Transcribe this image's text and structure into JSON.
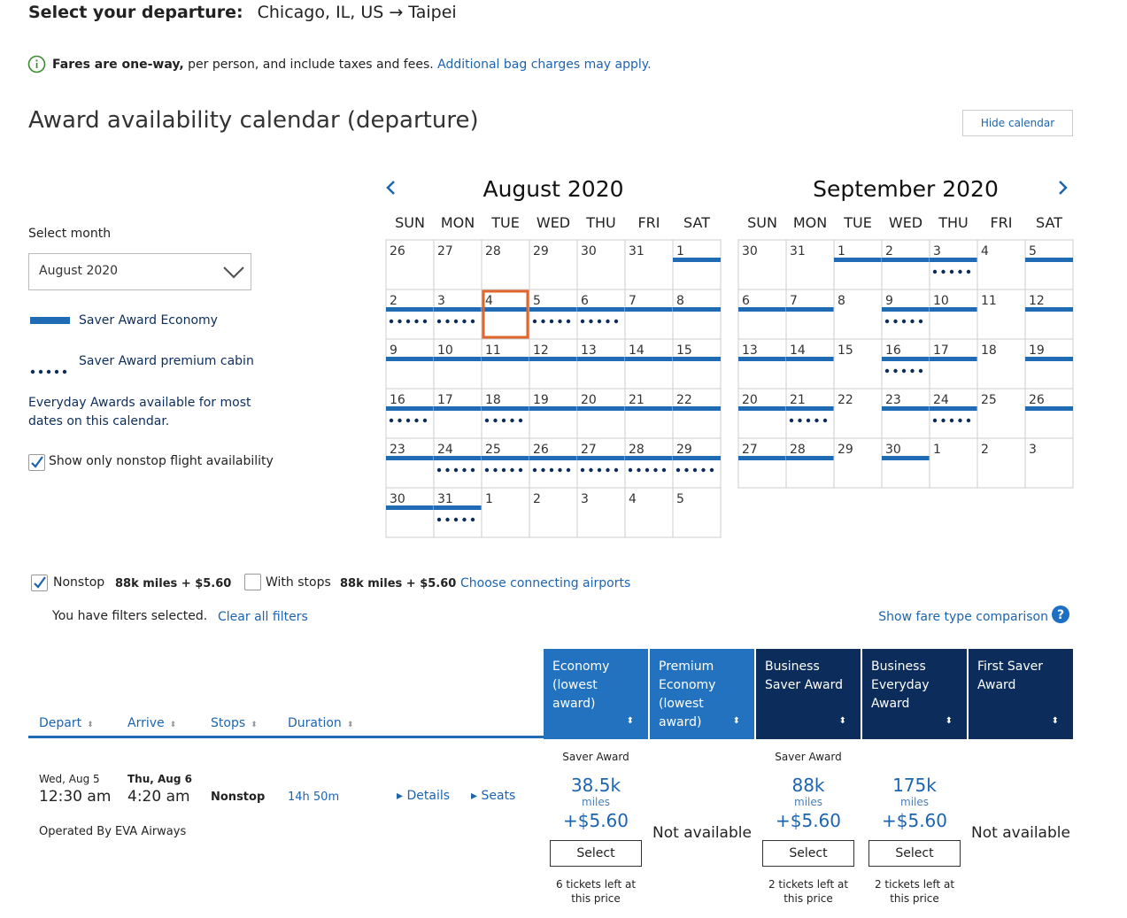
{
  "header": {
    "title": "Select your departure:",
    "route": "Chicago, IL, US → Taipei"
  },
  "notice": {
    "bold": "Fares are one-way,",
    "text": " per person, and include taxes and fees.",
    "link": "Additional bag charges may apply."
  },
  "calendar": {
    "title": "Award availability calendar (departure)",
    "hide_button": "Hide calendar",
    "select_label": "Select month",
    "select_value": "August 2020",
    "legend": [
      "Saver Award Economy",
      "Saver Award premium cabin"
    ],
    "everyday_note": "Everyday Awards available for most dates on this calendar.",
    "nonstop_checkbox": {
      "label": "Show only nonstop flight availability",
      "checked": true
    },
    "months": [
      {
        "title": "August 2020",
        "weekdays": [
          "SUN",
          "MON",
          "TUE",
          "WED",
          "THU",
          "FRI",
          "SAT"
        ],
        "days": [
          {
            "day": 26,
            "saver": false,
            "premium": false
          },
          {
            "day": 27,
            "saver": false,
            "premium": false
          },
          {
            "day": 28,
            "saver": false,
            "premium": false
          },
          {
            "day": 29,
            "saver": false,
            "premium": false
          },
          {
            "day": 30,
            "saver": false,
            "premium": false
          },
          {
            "day": 31,
            "saver": false,
            "premium": false
          },
          {
            "day": 1,
            "saver": true,
            "premium": false
          },
          {
            "day": 2,
            "saver": true,
            "premium": true
          },
          {
            "day": 3,
            "saver": true,
            "premium": true
          },
          {
            "day": 4,
            "saver": true,
            "premium": false,
            "selected": true
          },
          {
            "day": 5,
            "saver": true,
            "premium": true
          },
          {
            "day": 6,
            "saver": true,
            "premium": true
          },
          {
            "day": 7,
            "saver": true,
            "premium": false
          },
          {
            "day": 8,
            "saver": true,
            "premium": false
          },
          {
            "day": 9,
            "saver": true,
            "premium": false
          },
          {
            "day": 10,
            "saver": true,
            "premium": false
          },
          {
            "day": 11,
            "saver": true,
            "premium": false
          },
          {
            "day": 12,
            "saver": true,
            "premium": false
          },
          {
            "day": 13,
            "saver": true,
            "premium": false
          },
          {
            "day": 14,
            "saver": true,
            "premium": false
          },
          {
            "day": 15,
            "saver": true,
            "premium": false
          },
          {
            "day": 16,
            "saver": true,
            "premium": true
          },
          {
            "day": 17,
            "saver": true,
            "premium": false
          },
          {
            "day": 18,
            "saver": true,
            "premium": true
          },
          {
            "day": 19,
            "saver": true,
            "premium": false
          },
          {
            "day": 20,
            "saver": true,
            "premium": false
          },
          {
            "day": 21,
            "saver": true,
            "premium": false
          },
          {
            "day": 22,
            "saver": true,
            "premium": false
          },
          {
            "day": 23,
            "saver": true,
            "premium": false
          },
          {
            "day": 24,
            "saver": true,
            "premium": true
          },
          {
            "day": 25,
            "saver": true,
            "premium": true
          },
          {
            "day": 26,
            "saver": true,
            "premium": true
          },
          {
            "day": 27,
            "saver": true,
            "premium": true
          },
          {
            "day": 28,
            "saver": true,
            "premium": true
          },
          {
            "day": 29,
            "saver": true,
            "premium": true
          },
          {
            "day": 30,
            "saver": true,
            "premium": false
          },
          {
            "day": 31,
            "saver": true,
            "premium": true
          },
          {
            "day": 1,
            "saver": false,
            "premium": false
          },
          {
            "day": 2,
            "saver": false,
            "premium": false
          },
          {
            "day": 3,
            "saver": false,
            "premium": false
          },
          {
            "day": 4,
            "saver": false,
            "premium": false
          },
          {
            "day": 5,
            "saver": false,
            "premium": false
          }
        ]
      },
      {
        "title": "September 2020",
        "weekdays": [
          "SUN",
          "MON",
          "TUE",
          "WED",
          "THU",
          "FRI",
          "SAT"
        ],
        "days": [
          {
            "day": 30,
            "saver": false,
            "premium": false
          },
          {
            "day": 31,
            "saver": false,
            "premium": false
          },
          {
            "day": 1,
            "saver": true,
            "premium": false
          },
          {
            "day": 2,
            "saver": true,
            "premium": false
          },
          {
            "day": 3,
            "saver": true,
            "premium": true
          },
          {
            "day": 4,
            "saver": false,
            "premium": false
          },
          {
            "day": 5,
            "saver": true,
            "premium": false
          },
          {
            "day": 6,
            "saver": true,
            "premium": false
          },
          {
            "day": 7,
            "saver": true,
            "premium": false
          },
          {
            "day": 8,
            "saver": false,
            "premium": false
          },
          {
            "day": 9,
            "saver": true,
            "premium": true
          },
          {
            "day": 10,
            "saver": true,
            "premium": false
          },
          {
            "day": 11,
            "saver": false,
            "premium": false
          },
          {
            "day": 12,
            "saver": true,
            "premium": false
          },
          {
            "day": 13,
            "saver": true,
            "premium": false
          },
          {
            "day": 14,
            "saver": true,
            "premium": false
          },
          {
            "day": 15,
            "saver": false,
            "premium": false
          },
          {
            "day": 16,
            "saver": true,
            "premium": true
          },
          {
            "day": 17,
            "saver": true,
            "premium": false
          },
          {
            "day": 18,
            "saver": false,
            "premium": false
          },
          {
            "day": 19,
            "saver": true,
            "premium": false
          },
          {
            "day": 20,
            "saver": true,
            "premium": false
          },
          {
            "day": 21,
            "saver": true,
            "premium": true
          },
          {
            "day": 22,
            "saver": false,
            "premium": false
          },
          {
            "day": 23,
            "saver": true,
            "premium": false
          },
          {
            "day": 24,
            "saver": true,
            "premium": true
          },
          {
            "day": 25,
            "saver": false,
            "premium": false
          },
          {
            "day": 26,
            "saver": true,
            "premium": false
          },
          {
            "day": 27,
            "saver": true,
            "premium": false
          },
          {
            "day": 28,
            "saver": true,
            "premium": false
          },
          {
            "day": 29,
            "saver": false,
            "premium": false
          },
          {
            "day": 30,
            "saver": true,
            "premium": false
          },
          {
            "day": 1,
            "saver": false,
            "premium": false
          },
          {
            "day": 2,
            "saver": false,
            "premium": false
          },
          {
            "day": 3,
            "saver": false,
            "premium": false
          }
        ]
      }
    ]
  },
  "filters": {
    "nonstop": {
      "label": "Nonstop",
      "price": "88k miles + $5.60",
      "checked": true
    },
    "with_stops": {
      "label": "With stops",
      "price": "88k miles + $5.60",
      "checked": false
    },
    "connecting_link": "Choose connecting airports",
    "selected_text": "You have filters selected.",
    "clear_link": "Clear all filters",
    "comparison_link": "Show fare type comparison"
  },
  "results": {
    "columns": [
      "Depart",
      "Arrive",
      "Stops",
      "Duration"
    ],
    "fare_columns": [
      {
        "label": "Economy (lowest award)",
        "dark": false
      },
      {
        "label": "Premium Economy (lowest award)",
        "dark": false
      },
      {
        "label": "Business Saver Award",
        "dark": true
      },
      {
        "label": "Business Everyday Award",
        "dark": true
      },
      {
        "label": "First Saver Award",
        "dark": true
      }
    ],
    "flight": {
      "depart_date": "Wed, Aug 5",
      "depart_time": "12:30 am",
      "arrive_date": "Thu, Aug 6",
      "arrive_time": "4:20 am",
      "stops": "Nonstop",
      "duration": "14h 50m",
      "details": "Details",
      "seats": "Seats",
      "operated": "Operated By EVA Airways",
      "fares": [
        {
          "tag": "Saver Award",
          "miles": "38.5k",
          "unit": "miles",
          "fee": "+$5.60",
          "button": "Select",
          "note": "6 tickets left at this price"
        },
        {
          "unavailable": "Not available"
        },
        {
          "tag": "Saver Award",
          "miles": "88k",
          "unit": "miles",
          "fee": "+$5.60",
          "button": "Select",
          "note": "2 tickets left at this price"
        },
        {
          "miles": "175k",
          "unit": "miles",
          "fee": "+$5.60",
          "button": "Select",
          "note": "2 tickets left at this price"
        },
        {
          "unavailable": "Not available"
        }
      ]
    }
  }
}
